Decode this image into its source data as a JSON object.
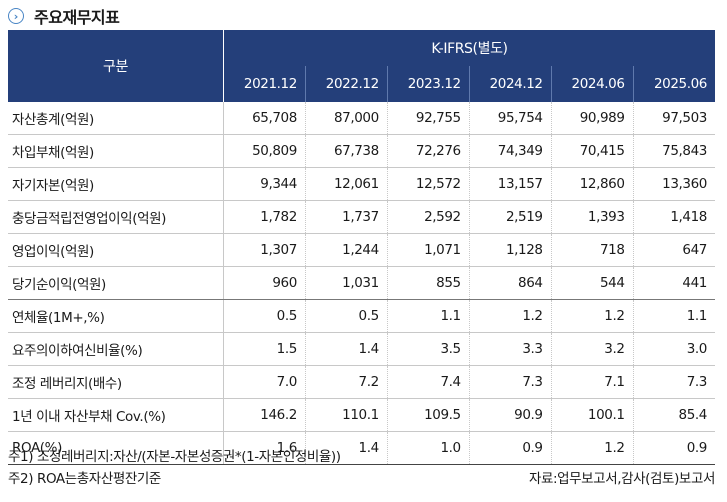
{
  "header": {
    "title": "주요재무지표",
    "icon": "chevron-right-icon"
  },
  "table": {
    "corner_label": "구분",
    "group_label": "K-IFRS(별도)",
    "periods": [
      "2021.12",
      "2022.12",
      "2023.12",
      "2024.12",
      "2024.06",
      "2025.06"
    ],
    "rows": [
      {
        "label": "자산총계(억원)",
        "values": [
          "65,708",
          "87,000",
          "92,755",
          "95,754",
          "90,989",
          "97,503"
        ]
      },
      {
        "label": "차입부채(억원)",
        "values": [
          "50,809",
          "67,738",
          "72,276",
          "74,349",
          "70,415",
          "75,843"
        ]
      },
      {
        "label": "자기자본(억원)",
        "values": [
          "9,344",
          "12,061",
          "12,572",
          "13,157",
          "12,860",
          "13,360"
        ]
      },
      {
        "label": "충당금적립전영업이익(억원)",
        "values": [
          "1,782",
          "1,737",
          "2,592",
          "2,519",
          "1,393",
          "1,418"
        ]
      },
      {
        "label": "영업이익(억원)",
        "values": [
          "1,307",
          "1,244",
          "1,071",
          "1,128",
          "718",
          "647"
        ]
      },
      {
        "label": "당기순이익(억원)",
        "values": [
          "960",
          "1,031",
          "855",
          "864",
          "544",
          "441"
        ]
      },
      {
        "label": "연체율(1M+,%)",
        "values": [
          "0.5",
          "0.5",
          "1.1",
          "1.2",
          "1.2",
          "1.1"
        ]
      },
      {
        "label": "요주의이하여신비율(%)",
        "values": [
          "1.5",
          "1.4",
          "3.5",
          "3.3",
          "3.2",
          "3.0"
        ]
      },
      {
        "label": "조정 레버리지(배수)",
        "values": [
          "7.0",
          "7.2",
          "7.4",
          "7.3",
          "7.1",
          "7.3"
        ]
      },
      {
        "label": "1년 이내 자산부채 Cov.(%)",
        "values": [
          "146.2",
          "110.1",
          "109.5",
          "90.9",
          "100.1",
          "85.4"
        ]
      },
      {
        "label": "ROA(%)",
        "values": [
          "1.6",
          "1.4",
          "1.0",
          "0.9",
          "1.2",
          "0.9"
        ]
      }
    ]
  },
  "notes": {
    "note1": "주1) 조정레버리지:자산/(자본-자본성증권*(1-자본인정비율))",
    "note2": "주2) ROA는총자산평잔기준",
    "source": "자료:업무보고서,감사(검토)보고서"
  },
  "colors": {
    "header_bg": "#243f7a",
    "icon": "#4a86c5"
  }
}
